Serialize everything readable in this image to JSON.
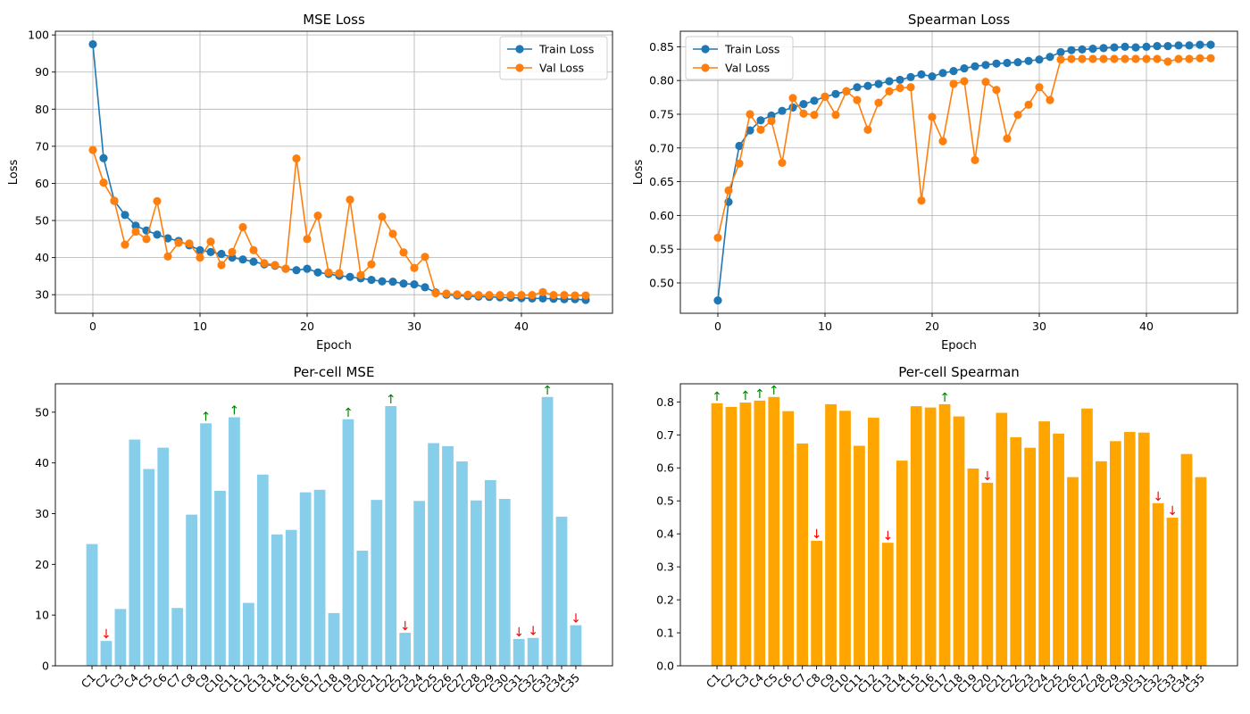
{
  "chart_data": [
    {
      "type": "line",
      "title": "MSE Loss",
      "xlabel": "Epoch",
      "ylabel": "Loss",
      "xlim": [
        -3.5,
        48.5
      ],
      "ylim": [
        25,
        101
      ],
      "xticks": [
        0,
        10,
        20,
        30,
        40
      ],
      "yticks": [
        30,
        40,
        50,
        60,
        70,
        80,
        90,
        100
      ],
      "ytick_decimals": 0,
      "grid": true,
      "legend_position": "top-right",
      "x": [
        0,
        1,
        2,
        3,
        4,
        5,
        6,
        7,
        8,
        9,
        10,
        11,
        12,
        13,
        14,
        15,
        16,
        17,
        18,
        19,
        20,
        21,
        22,
        23,
        24,
        25,
        26,
        27,
        28,
        29,
        30,
        31,
        32,
        33,
        34,
        35,
        36,
        37,
        38,
        39,
        40,
        41,
        42,
        43,
        44,
        45,
        46
      ],
      "series": [
        {
          "name": "Train Loss",
          "color": "#1f77b4",
          "values": [
            97.5,
            66.8,
            55.3,
            51.5,
            48.6,
            47.3,
            46.2,
            45.2,
            44.5,
            43.3,
            42.0,
            41.5,
            41.0,
            40.0,
            39.5,
            38.9,
            38.2,
            37.8,
            37.0,
            36.6,
            37.0,
            36.0,
            35.6,
            35.1,
            34.8,
            34.4,
            34.0,
            33.6,
            33.5,
            33.0,
            32.8,
            32.0,
            30.6,
            30.0,
            29.8,
            29.6,
            29.5,
            29.4,
            29.3,
            29.2,
            29.1,
            29.0,
            29.0,
            28.9,
            28.8,
            28.8,
            28.6
          ]
        },
        {
          "name": "Val Loss",
          "color": "#ff7f0e",
          "values": [
            69.0,
            60.2,
            55.3,
            43.5,
            47.0,
            45.0,
            55.2,
            40.3,
            44.0,
            43.8,
            40.0,
            44.3,
            38.0,
            41.5,
            48.2,
            42.0,
            38.5,
            38.0,
            37.0,
            66.7,
            45.0,
            51.3,
            36.0,
            35.8,
            55.6,
            35.3,
            38.2,
            51.0,
            46.4,
            41.4,
            37.2,
            40.2,
            30.4,
            30.3,
            30.1,
            30.0,
            29.9,
            29.9,
            29.9,
            29.9,
            29.9,
            29.9,
            30.7,
            29.9,
            29.9,
            29.8,
            29.8
          ]
        }
      ]
    },
    {
      "type": "line",
      "title": "Spearman Loss",
      "xlabel": "Epoch",
      "ylabel": "Loss",
      "xlim": [
        -3.5,
        48.5
      ],
      "ylim": [
        0.455,
        0.873
      ],
      "xticks": [
        0,
        10,
        20,
        30,
        40
      ],
      "yticks": [
        0.5,
        0.55,
        0.6,
        0.65,
        0.7,
        0.75,
        0.8,
        0.85
      ],
      "ytick_decimals": 2,
      "grid": true,
      "legend_position": "top-left",
      "x": [
        0,
        1,
        2,
        3,
        4,
        5,
        6,
        7,
        8,
        9,
        10,
        11,
        12,
        13,
        14,
        15,
        16,
        17,
        18,
        19,
        20,
        21,
        22,
        23,
        24,
        25,
        26,
        27,
        28,
        29,
        30,
        31,
        32,
        33,
        34,
        35,
        36,
        37,
        38,
        39,
        40,
        41,
        42,
        43,
        44,
        45,
        46
      ],
      "series": [
        {
          "name": "Train Loss",
          "color": "#1f77b4",
          "values": [
            0.474,
            0.62,
            0.703,
            0.726,
            0.741,
            0.748,
            0.755,
            0.76,
            0.765,
            0.77,
            0.776,
            0.78,
            0.784,
            0.79,
            0.792,
            0.795,
            0.799,
            0.801,
            0.805,
            0.809,
            0.806,
            0.811,
            0.814,
            0.818,
            0.821,
            0.823,
            0.825,
            0.826,
            0.827,
            0.829,
            0.831,
            0.835,
            0.842,
            0.845,
            0.846,
            0.847,
            0.848,
            0.849,
            0.85,
            0.849,
            0.85,
            0.851,
            0.851,
            0.852,
            0.852,
            0.853,
            0.853
          ]
        },
        {
          "name": "Val Loss",
          "color": "#ff7f0e",
          "values": [
            0.567,
            0.637,
            0.677,
            0.75,
            0.727,
            0.74,
            0.678,
            0.774,
            0.751,
            0.749,
            0.776,
            0.749,
            0.784,
            0.771,
            0.727,
            0.767,
            0.784,
            0.789,
            0.79,
            0.622,
            0.746,
            0.71,
            0.795,
            0.799,
            0.682,
            0.798,
            0.786,
            0.714,
            0.749,
            0.764,
            0.79,
            0.771,
            0.831,
            0.832,
            0.832,
            0.832,
            0.832,
            0.832,
            0.832,
            0.832,
            0.832,
            0.832,
            0.828,
            0.832,
            0.832,
            0.833,
            0.833
          ]
        }
      ]
    },
    {
      "type": "bar",
      "title": "Per-cell MSE",
      "xlabel": "",
      "ylabel": "",
      "ylim": [
        0,
        55.6
      ],
      "yticks": [
        0,
        10,
        20,
        30,
        40,
        50
      ],
      "ytick_decimals": 0,
      "grid": false,
      "color": "#87ceeb",
      "categories": [
        "C1",
        "C2",
        "C3",
        "C4",
        "C5",
        "C6",
        "C7",
        "C8",
        "C9",
        "C10",
        "C11",
        "C12",
        "C13",
        "C14",
        "C15",
        "C16",
        "C17",
        "C18",
        "C19",
        "C20",
        "C21",
        "C22",
        "C23",
        "C24",
        "C25",
        "C26",
        "C27",
        "C28",
        "C29",
        "C30",
        "C31",
        "C32",
        "C33",
        "C34",
        "C35"
      ],
      "values": [
        24.0,
        4.9,
        11.2,
        44.6,
        38.8,
        43.0,
        11.4,
        29.8,
        47.8,
        34.5,
        49.0,
        12.4,
        37.7,
        25.9,
        26.8,
        34.2,
        34.7,
        10.4,
        48.6,
        22.7,
        32.7,
        51.2,
        6.5,
        32.5,
        43.9,
        43.3,
        40.3,
        32.6,
        36.6,
        32.9,
        5.3,
        5.5,
        53.0,
        29.4,
        8.0
      ],
      "annotations": [
        {
          "category": "C2",
          "symbol": "↓",
          "color": "#ff0000"
        },
        {
          "category": "C9",
          "symbol": "↑",
          "color": "#008000"
        },
        {
          "category": "C11",
          "symbol": "↑",
          "color": "#008000"
        },
        {
          "category": "C19",
          "symbol": "↑",
          "color": "#008000"
        },
        {
          "category": "C22",
          "symbol": "↑",
          "color": "#008000"
        },
        {
          "category": "C23",
          "symbol": "↓",
          "color": "#ff0000"
        },
        {
          "category": "C31",
          "symbol": "↓",
          "color": "#ff0000"
        },
        {
          "category": "C32",
          "symbol": "↓",
          "color": "#ff0000"
        },
        {
          "category": "C33",
          "symbol": "↑",
          "color": "#008000"
        },
        {
          "category": "C35",
          "symbol": "↓",
          "color": "#ff0000"
        }
      ]
    },
    {
      "type": "bar",
      "title": "Per-cell Spearman",
      "xlabel": "",
      "ylabel": "",
      "ylim": [
        0,
        0.855
      ],
      "yticks": [
        0.0,
        0.1,
        0.2,
        0.3,
        0.4,
        0.5,
        0.6,
        0.7,
        0.8
      ],
      "ytick_decimals": 1,
      "grid": false,
      "color": "#ffa500",
      "categories": [
        "C1",
        "C2",
        "C3",
        "C4",
        "C5",
        "C6",
        "C7",
        "C8",
        "C9",
        "C10",
        "C11",
        "C12",
        "C13",
        "C14",
        "C15",
        "C16",
        "C17",
        "C18",
        "C19",
        "C20",
        "C21",
        "C22",
        "C23",
        "C24",
        "C25",
        "C26",
        "C27",
        "C28",
        "C29",
        "C30",
        "C31",
        "C32",
        "C33",
        "C34",
        "C35"
      ],
      "values": [
        0.796,
        0.785,
        0.798,
        0.804,
        0.815,
        0.772,
        0.674,
        0.379,
        0.793,
        0.773,
        0.667,
        0.752,
        0.373,
        0.622,
        0.787,
        0.783,
        0.793,
        0.756,
        0.598,
        0.555,
        0.767,
        0.693,
        0.661,
        0.741,
        0.704,
        0.572,
        0.78,
        0.62,
        0.681,
        0.709,
        0.707,
        0.493,
        0.449,
        0.642,
        0.572
      ],
      "annotations": [
        {
          "category": "C1",
          "symbol": "↑",
          "color": "#008000"
        },
        {
          "category": "C3",
          "symbol": "↑",
          "color": "#008000"
        },
        {
          "category": "C4",
          "symbol": "↑",
          "color": "#008000"
        },
        {
          "category": "C5",
          "symbol": "↑",
          "color": "#008000"
        },
        {
          "category": "C8",
          "symbol": "↓",
          "color": "#ff0000"
        },
        {
          "category": "C13",
          "symbol": "↓",
          "color": "#ff0000"
        },
        {
          "category": "C17",
          "symbol": "↑",
          "color": "#008000"
        },
        {
          "category": "C20",
          "symbol": "↓",
          "color": "#ff0000"
        },
        {
          "category": "C32",
          "symbol": "↓",
          "color": "#ff0000"
        },
        {
          "category": "C33",
          "symbol": "↓",
          "color": "#ff0000"
        }
      ]
    }
  ]
}
